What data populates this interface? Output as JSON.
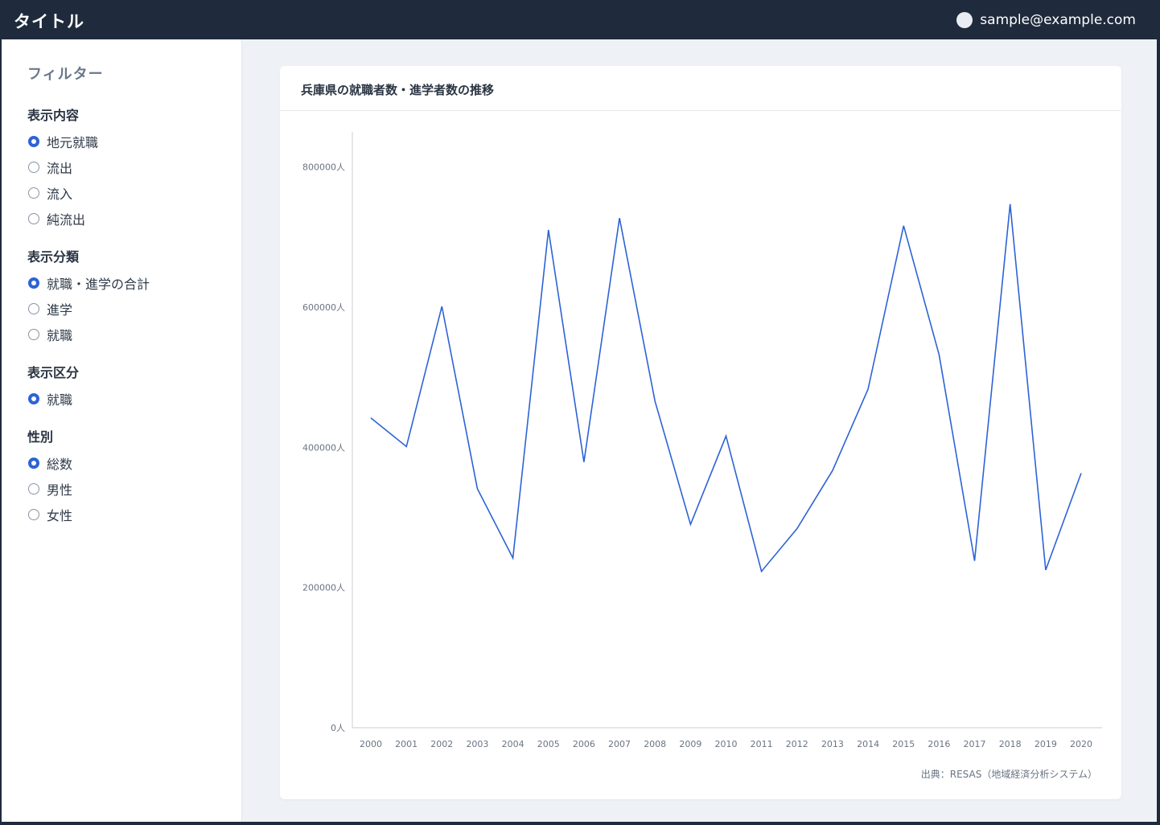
{
  "header": {
    "title": "タイトル",
    "user_email": "sample@example.com"
  },
  "sidebar": {
    "title": "フィルター",
    "groups": [
      {
        "title": "表示内容",
        "options": [
          {
            "label": "地元就職",
            "checked": true
          },
          {
            "label": "流出",
            "checked": false
          },
          {
            "label": "流入",
            "checked": false
          },
          {
            "label": "純流出",
            "checked": false
          }
        ]
      },
      {
        "title": "表示分類",
        "options": [
          {
            "label": "就職・進学の合計",
            "checked": true
          },
          {
            "label": "進学",
            "checked": false
          },
          {
            "label": "就職",
            "checked": false
          }
        ]
      },
      {
        "title": "表示区分",
        "options": [
          {
            "label": "就職",
            "checked": true
          }
        ]
      },
      {
        "title": "性別",
        "options": [
          {
            "label": "総数",
            "checked": true
          },
          {
            "label": "男性",
            "checked": false
          },
          {
            "label": "女性",
            "checked": false
          }
        ]
      }
    ]
  },
  "card": {
    "title": "兵庫県の就職者数・進学者数の推移",
    "source": "出典：RESAS（地域経済分析システム）"
  },
  "colors": {
    "header_bg": "#1f2a3c",
    "accent": "#2d63d6",
    "line": "#2d63d6"
  },
  "chart_data": {
    "type": "line",
    "title": "兵庫県の就職者数・進学者数の推移",
    "x": [
      "2000",
      "2001",
      "2002",
      "2003",
      "2004",
      "2005",
      "2006",
      "2007",
      "2008",
      "2009",
      "2010",
      "2011",
      "2012",
      "2013",
      "2014",
      "2015",
      "2016",
      "2017",
      "2018",
      "2019",
      "2020"
    ],
    "series": [
      {
        "values": [
          442000,
          401000,
          601000,
          341000,
          242000,
          710000,
          379000,
          727000,
          466000,
          290000,
          416000,
          223000,
          284000,
          367000,
          483000,
          716000,
          532000,
          238000,
          747000,
          225000,
          363000
        ]
      }
    ],
    "ylim": [
      0,
      850000
    ],
    "yticks": [
      0,
      200000,
      400000,
      600000,
      800000
    ],
    "ytick_labels": [
      "0人",
      "200000人",
      "400000人",
      "600000人",
      "800000人"
    ],
    "grid": false,
    "legend": "none"
  }
}
